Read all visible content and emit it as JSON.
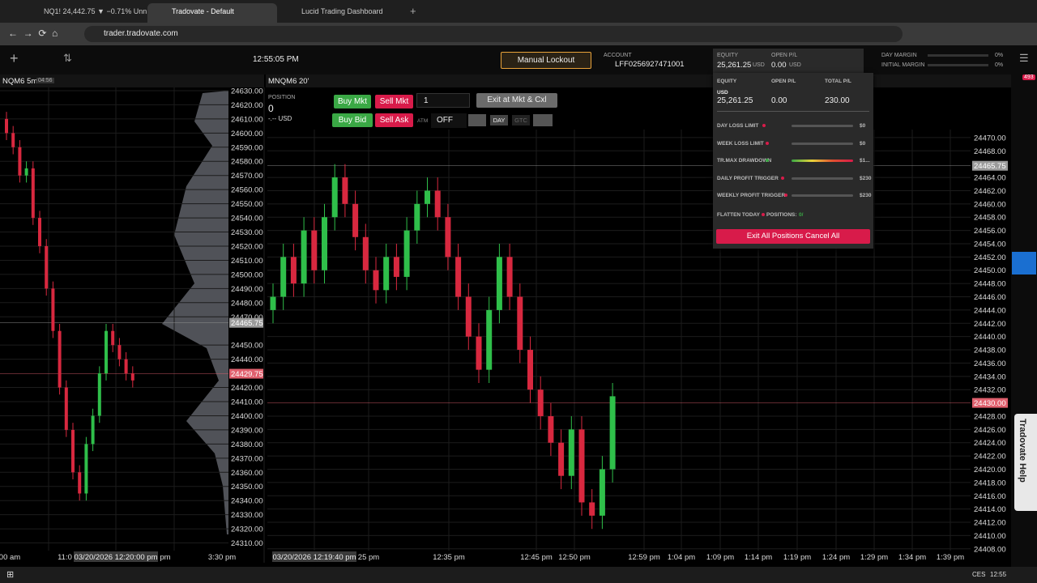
{
  "browser": {
    "tabs": [
      "NQ1! 24,442.75 ▼ −0.71% Unn",
      "Tradovate - Default",
      "Lucid Trading Dashboard"
    ],
    "url": "trader.tradovate.com"
  },
  "toolbar": {
    "clock": "12:55:05 PM",
    "lockout": "Manual Lockout",
    "account_label": "ACCOUNT",
    "account": "LFF0256927471001",
    "equity_label": "EQUITY",
    "equity": "25,261.25",
    "equity_unit": "USD",
    "open_pl_label": "OPEN P/L",
    "open_pl": "0.00",
    "open_pl_unit": "USD",
    "day_margin_label": "DAY MARGIN",
    "day_margin": "0%",
    "initial_margin_label": "INITIAL MARGIN",
    "initial_margin": "0%"
  },
  "risk_panel": {
    "headers": [
      "EQUITY",
      "OPEN P/L",
      "TOTAL P/L"
    ],
    "unit": "USD",
    "values": [
      "25,261.25",
      "0.00",
      "230.00"
    ],
    "rows": [
      {
        "label": "DAY LOSS LIMIT",
        "amount": "$0"
      },
      {
        "label": "WEEK LOSS LIMIT",
        "amount": "$0"
      },
      {
        "label": "TR.MAX DRAWDOWN",
        "amount": "$1..."
      },
      {
        "label": "DAILY PROFIT TRIGGER",
        "amount": "$230"
      },
      {
        "label": "WEEKLY PROFIT TRIGGER",
        "amount": "$230"
      }
    ],
    "flatten": "FLATTEN TODAY",
    "positions": "POSITIONS:",
    "positions_count": "0/",
    "exit_button": "Exit All Positions Cancel All"
  },
  "order_bar": {
    "position_label": "POSITION",
    "position": "0",
    "pl": "-.-- USD",
    "buy_mkt": "Buy Mkt",
    "sell_mkt": "Sell Mkt",
    "buy_bid": "Buy Bid",
    "sell_ask": "Sell Ask",
    "quantity": "1",
    "exit": "Exit at Mkt & Cxl",
    "atm": "ATM",
    "atm_value": "OFF",
    "day": "DAY",
    "gtc": "GTC"
  },
  "sidebar": {
    "badge": "493",
    "help": "Tradovate Help"
  },
  "taskbar": {
    "language": "CES",
    "time": "12:55"
  },
  "chart_data": [
    {
      "type": "candlestick",
      "title": "NQM6 5m",
      "badge": "04:56",
      "up_color": "#2fbf4a",
      "down_color": "#d8283f",
      "grid": true,
      "open": [
        24610,
        24600,
        24590,
        24570,
        24575,
        24540,
        24520,
        24490,
        24460,
        24420,
        24390,
        24360,
        24345,
        24380,
        24400,
        24430,
        24460,
        24450,
        24440,
        24430
      ],
      "high": [
        24615,
        24605,
        24595,
        24580,
        24580,
        24545,
        24525,
        24495,
        24465,
        24425,
        24395,
        24365,
        24385,
        24405,
        24435,
        24465,
        24465,
        24455,
        24445,
        24435
      ],
      "low": [
        24595,
        24585,
        24565,
        24565,
        24535,
        24515,
        24485,
        24455,
        24415,
        24385,
        24355,
        24340,
        24340,
        24375,
        24395,
        24425,
        24445,
        24435,
        24425,
        24420
      ],
      "close": [
        24600,
        24590,
        24570,
        24575,
        24540,
        24520,
        24490,
        24460,
        24420,
        24390,
        24360,
        24345,
        24380,
        24400,
        24430,
        24460,
        24450,
        24440,
        24430,
        24425
      ],
      "ylim": [
        24296,
        24638
      ],
      "yticks": [
        {
          "value": 24630,
          "label": "24630.00"
        },
        {
          "value": 24620,
          "label": "24620.00"
        },
        {
          "value": 24610,
          "label": "24610.00"
        },
        {
          "value": 24600,
          "label": "24600.00"
        },
        {
          "value": 24590,
          "label": "24590.00"
        },
        {
          "value": 24580,
          "label": "24580.00"
        },
        {
          "value": 24570,
          "label": "24570.00"
        },
        {
          "value": 24560,
          "label": "24560.00"
        },
        {
          "value": 24550,
          "label": "24550.00"
        },
        {
          "value": 24540,
          "label": "24540.00"
        },
        {
          "value": 24530,
          "label": "24530.00"
        },
        {
          "value": 24520,
          "label": "24520.00"
        },
        {
          "value": 24510,
          "label": "24510.00"
        },
        {
          "value": 24500,
          "label": "24500.00"
        },
        {
          "value": 24490,
          "label": "24490.00"
        },
        {
          "value": 24480,
          "label": "24480.00"
        },
        {
          "value": 24470,
          "label": "24470.00"
        },
        {
          "value": 24450,
          "label": "24450.00"
        },
        {
          "value": 24440,
          "label": "24440.00"
        },
        {
          "value": 24420,
          "label": "24420.00"
        },
        {
          "value": 24410,
          "label": "24410.00"
        },
        {
          "value": 24400,
          "label": "24400.00"
        },
        {
          "value": 24390,
          "label": "24390.00"
        },
        {
          "value": 24380,
          "label": "24380.00"
        },
        {
          "value": 24370,
          "label": "24370.00"
        },
        {
          "value": 24360,
          "label": "24360.00"
        },
        {
          "value": 24350,
          "label": "24350.00"
        },
        {
          "value": 24340,
          "label": "24340.00"
        },
        {
          "value": 24330,
          "label": "24330.00"
        },
        {
          "value": 24320,
          "label": "24320.00"
        },
        {
          "value": 24310,
          "label": "24310.00"
        }
      ],
      "markers": [
        {
          "value": 24465.75,
          "label": "24465.75",
          "color": "#9a9a9a"
        },
        {
          "value": 24429.75,
          "label": "24429.75",
          "color": "#e0606e"
        }
      ],
      "x_labels": [
        "00 am",
        "11:0",
        "pm",
        "3:30 pm"
      ],
      "cursor_label": "03/20/2026 12:20:00 pm"
    },
    {
      "type": "candlestick",
      "title": "MNQM6 20'",
      "up_color": "#2fbf4a",
      "down_color": "#d8283f",
      "grid": true,
      "open": [
        24444,
        24446,
        24452,
        24448,
        24456,
        24450,
        24458,
        24464,
        24460,
        24455,
        24450,
        24447,
        24452,
        24449,
        24456,
        24460,
        24462,
        24458,
        24452,
        24446,
        24440,
        24435,
        24444,
        24452,
        24446,
        24438,
        24432,
        24428,
        24424,
        24419,
        24426,
        24415,
        24413,
        24420
      ],
      "high": [
        24448,
        24454,
        24454,
        24458,
        24458,
        24460,
        24466,
        24466,
        24462,
        24457,
        24452,
        24454,
        24454,
        24458,
        24462,
        24464,
        24464,
        24460,
        24454,
        24448,
        24442,
        24446,
        24454,
        24454,
        24448,
        24440,
        24434,
        24430,
        24426,
        24428,
        24428,
        24417,
        24422,
        24433
      ],
      "low": [
        24442,
        24444,
        24446,
        24446,
        24448,
        24448,
        24456,
        24458,
        24453,
        24448,
        24445,
        24445,
        24447,
        24447,
        24454,
        24458,
        24456,
        24450,
        24444,
        24438,
        24433,
        24433,
        24442,
        24444,
        24436,
        24430,
        24426,
        24422,
        24417,
        24417,
        24413,
        24411,
        24411,
        24418
      ],
      "close": [
        24446,
        24452,
        24448,
        24456,
        24450,
        24458,
        24464,
        24460,
        24455,
        24450,
        24447,
        24452,
        24449,
        24456,
        24460,
        24462,
        24458,
        24452,
        24446,
        24440,
        24435,
        24444,
        24452,
        24446,
        24438,
        24432,
        24428,
        24424,
        24419,
        24426,
        24415,
        24413,
        24420,
        24431
      ],
      "ylim": [
        24405.9,
        24470.6
      ],
      "yticks": [
        {
          "value": 24470,
          "label": "24470.00"
        },
        {
          "value": 24468,
          "label": "24468.00"
        },
        {
          "value": 24464,
          "label": "24464.00"
        },
        {
          "value": 24462,
          "label": "24462.00"
        },
        {
          "value": 24460,
          "label": "24460.00"
        },
        {
          "value": 24458,
          "label": "24458.00"
        },
        {
          "value": 24456,
          "label": "24456.00"
        },
        {
          "value": 24454,
          "label": "24454.00"
        },
        {
          "value": 24452,
          "label": "24452.00"
        },
        {
          "value": 24450,
          "label": "24450.00"
        },
        {
          "value": 24448,
          "label": "24448.00"
        },
        {
          "value": 24446,
          "label": "24446.00"
        },
        {
          "value": 24444,
          "label": "24444.00"
        },
        {
          "value": 24442,
          "label": "24442.00"
        },
        {
          "value": 24440,
          "label": "24440.00"
        },
        {
          "value": 24438,
          "label": "24438.00"
        },
        {
          "value": 24436,
          "label": "24436.00"
        },
        {
          "value": 24434,
          "label": "24434.00"
        },
        {
          "value": 24432,
          "label": "24432.00"
        },
        {
          "value": 24428,
          "label": "24428.00"
        },
        {
          "value": 24426,
          "label": "24426.00"
        },
        {
          "value": 24424,
          "label": "24424.00"
        },
        {
          "value": 24422,
          "label": "24422.00"
        },
        {
          "value": 24420,
          "label": "24420.00"
        },
        {
          "value": 24418,
          "label": "24418.00"
        },
        {
          "value": 24416,
          "label": "24416.00"
        },
        {
          "value": 24414,
          "label": "24414.00"
        },
        {
          "value": 24412,
          "label": "24412.00"
        },
        {
          "value": 24410,
          "label": "24410.00"
        },
        {
          "value": 24408,
          "label": "24408.00"
        }
      ],
      "markers": [
        {
          "value": 24465.75,
          "label": "24465.75",
          "color": "#9a9a9a"
        },
        {
          "value": 24430.0,
          "label": "24430.00",
          "color": "#e0606e"
        }
      ],
      "x_labels": [
        "25 pm",
        "12:35 pm",
        "12:45 pm",
        "12:50 pm",
        "12:59 pm",
        "1:04 pm",
        "1:09 pm",
        "1:14 pm",
        "1:19 pm",
        "1:24 pm",
        "1:29 pm",
        "1:34 pm",
        "1:39 pm"
      ],
      "cursor_label": "03/20/2026 12:19:40 pm"
    }
  ]
}
